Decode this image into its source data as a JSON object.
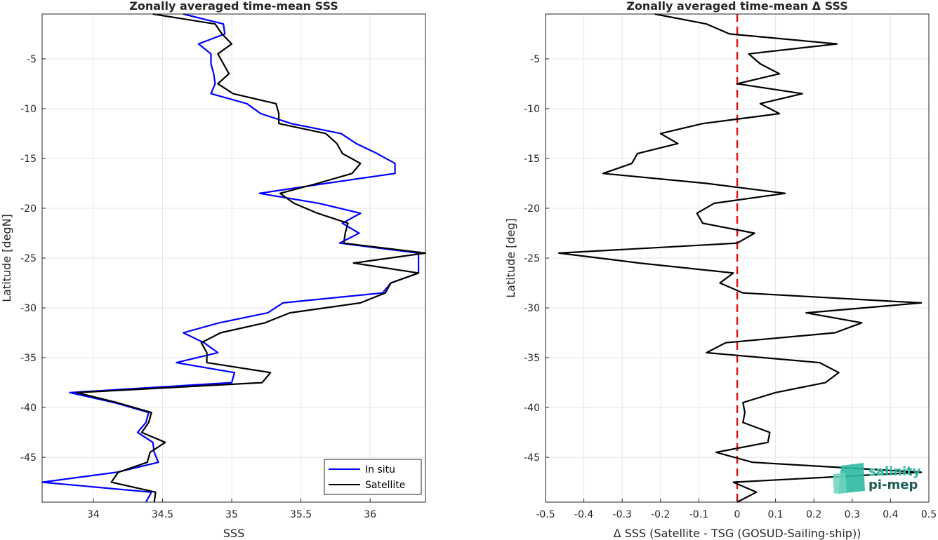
{
  "chart_data": [
    {
      "type": "line",
      "title": "Zonally averaged time-mean SSS",
      "xlabel": "SSS",
      "ylabel": "Latitude [degN]",
      "xlim": [
        33.63,
        36.4
      ],
      "ylim": [
        -49.5,
        -0.5
      ],
      "xticks": [
        34,
        34.5,
        35,
        35.5,
        36
      ],
      "xtick_labels": [
        "34",
        "34.5",
        "35",
        "35.5",
        "36"
      ],
      "yticks": [
        -5,
        -10,
        -15,
        -20,
        -25,
        -30,
        -35,
        -40,
        -45
      ],
      "ytick_labels": [
        "-5",
        "-10",
        "-15",
        "-20",
        "-25",
        "-30",
        "-35",
        "-40",
        "-45"
      ],
      "grid": true,
      "legend": "bottom-right",
      "series": [
        {
          "name": "In situ",
          "color": "#0000ff",
          "lat": [
            -0.5,
            -1.5,
            -2.5,
            -3.5,
            -4.5,
            -5.5,
            -6.5,
            -7.5,
            -8.5,
            -9.5,
            -10.5,
            -11.5,
            -12.5,
            -13.5,
            -14.5,
            -15.5,
            -16.5,
            -17.5,
            -18.5,
            -19.5,
            -20.5,
            -21.5,
            -22.5,
            -23.5,
            -24.5,
            -25.5,
            -26.5,
            -27.5,
            -28.5,
            -29.5,
            -30.5,
            -31.5,
            -32.5,
            -33.5,
            -34.5,
            -35.5,
            -36.5,
            -37.5,
            -38.5,
            -39.5,
            -40.5,
            -41.5,
            -42.5,
            -43.5,
            -44.5,
            -45.5,
            -46.5,
            -47.5,
            -48.5,
            -49.5
          ],
          "values": [
            34.65,
            34.94,
            34.95,
            34.76,
            34.85,
            34.85,
            34.87,
            34.88,
            34.85,
            35.11,
            35.21,
            35.43,
            35.79,
            35.9,
            36.05,
            36.18,
            36.18,
            35.68,
            35.2,
            35.63,
            35.93,
            35.8,
            35.92,
            35.78,
            36.35,
            36.35,
            36.35,
            36.15,
            36.09,
            35.37,
            35.26,
            34.91,
            34.65,
            34.8,
            34.9,
            34.6,
            35.02,
            35.0,
            33.83,
            34.15,
            34.4,
            34.38,
            34.32,
            34.43,
            34.44,
            34.47,
            34.17,
            33.63,
            34.42,
            34.38
          ]
        },
        {
          "name": "Satellite",
          "color": "#000000",
          "lat": [
            -0.5,
            -1.5,
            -2.5,
            -3.5,
            -4.5,
            -5.5,
            -6.5,
            -7.5,
            -8.5,
            -9.5,
            -10.5,
            -11.5,
            -12.5,
            -13.5,
            -14.5,
            -15.5,
            -16.5,
            -17.5,
            -18.5,
            -19.5,
            -20.5,
            -21.5,
            -22.5,
            -23.5,
            -24.5,
            -25.5,
            -26.5,
            -27.5,
            -28.5,
            -29.5,
            -30.5,
            -31.5,
            -32.5,
            -33.5,
            -34.5,
            -35.5,
            -36.5,
            -37.5,
            -38.5,
            -39.5,
            -40.5,
            -41.5,
            -42.5,
            -43.5,
            -44.5,
            -45.5,
            -46.5,
            -47.5,
            -48.5,
            -49.5
          ],
          "values": [
            34.43,
            34.88,
            34.93,
            35.0,
            34.9,
            34.94,
            34.98,
            34.9,
            35.01,
            35.32,
            35.34,
            35.34,
            35.68,
            35.76,
            35.8,
            35.93,
            35.87,
            35.62,
            35.35,
            35.45,
            35.62,
            35.84,
            35.82,
            35.81,
            36.4,
            35.88,
            36.35,
            36.15,
            36.11,
            35.93,
            35.42,
            35.24,
            34.92,
            34.78,
            34.82,
            34.82,
            35.28,
            35.22,
            33.88,
            34.17,
            34.42,
            34.4,
            34.35,
            34.52,
            34.41,
            34.39,
            34.18,
            34.13,
            34.45,
            34.44
          ]
        }
      ]
    },
    {
      "type": "line",
      "title": "Zonally averaged time-mean Δ SSS",
      "xlabel": "Δ SSS (Satellite - TSG (GOSUD-Sailing-ship))",
      "ylabel": "Latitude [deg]",
      "xlim": [
        -0.5,
        0.5
      ],
      "ylim": [
        -49.5,
        -0.5
      ],
      "xticks": [
        -0.5,
        -0.4,
        -0.3,
        -0.2,
        -0.1,
        0,
        0.1,
        0.2,
        0.3,
        0.4,
        0.5
      ],
      "xtick_labels": [
        "-0.5",
        "-0.4",
        "-0.3",
        "-0.2",
        "-0.1",
        "0",
        "0.1",
        "0.2",
        "0.3",
        "0.4",
        "0.5"
      ],
      "yticks": [
        -5,
        -10,
        -15,
        -20,
        -25,
        -30,
        -35,
        -40,
        -45
      ],
      "ytick_labels": [
        "-5",
        "-10",
        "-15",
        "-20",
        "-25",
        "-30",
        "-35",
        "-40",
        "-45"
      ],
      "grid": true,
      "reference_line": {
        "x": 0,
        "color": "#e01515",
        "style": "dashed"
      },
      "series": [
        {
          "color": "#000000",
          "lat": [
            -0.5,
            -1.5,
            -2.5,
            -3.5,
            -4.5,
            -5.5,
            -6.5,
            -7.5,
            -8.5,
            -9.5,
            -10.5,
            -11.5,
            -12.5,
            -13.5,
            -14.5,
            -15.5,
            -16.5,
            -17.5,
            -18.5,
            -19.5,
            -20.5,
            -21.5,
            -22.5,
            -23.5,
            -24.5,
            -25.5,
            -26.5,
            -27.5,
            -28.5,
            -29.5,
            -30.5,
            -31.5,
            -32.5,
            -33.5,
            -34.5,
            -35.5,
            -36.5,
            -37.5,
            -38.5,
            -39.5,
            -40.5,
            -41.5,
            -42.5,
            -43.5,
            -44.5,
            -45.5,
            -46.5,
            -47.5,
            -48.5,
            -49.5
          ],
          "values": [
            -0.215,
            -0.08,
            -0.02,
            0.26,
            0.03,
            0.06,
            0.11,
            0.0,
            0.17,
            0.06,
            0.11,
            -0.09,
            -0.2,
            -0.155,
            -0.26,
            -0.275,
            -0.35,
            -0.08,
            0.125,
            -0.06,
            -0.105,
            -0.09,
            0.045,
            0.0,
            -0.465,
            -0.255,
            -0.01,
            -0.045,
            0.015,
            0.48,
            0.18,
            0.325,
            0.255,
            -0.03,
            -0.08,
            0.215,
            0.265,
            0.23,
            0.1,
            0.015,
            0.02,
            0.015,
            0.085,
            0.08,
            -0.055,
            0.04,
            0.48,
            -0.01,
            0.05,
            0.0
          ]
        }
      ]
    }
  ],
  "legend": {
    "entries": [
      "In situ",
      "Satellite"
    ]
  },
  "logo": {
    "line1": "salinity",
    "line2": "pi-mep"
  }
}
